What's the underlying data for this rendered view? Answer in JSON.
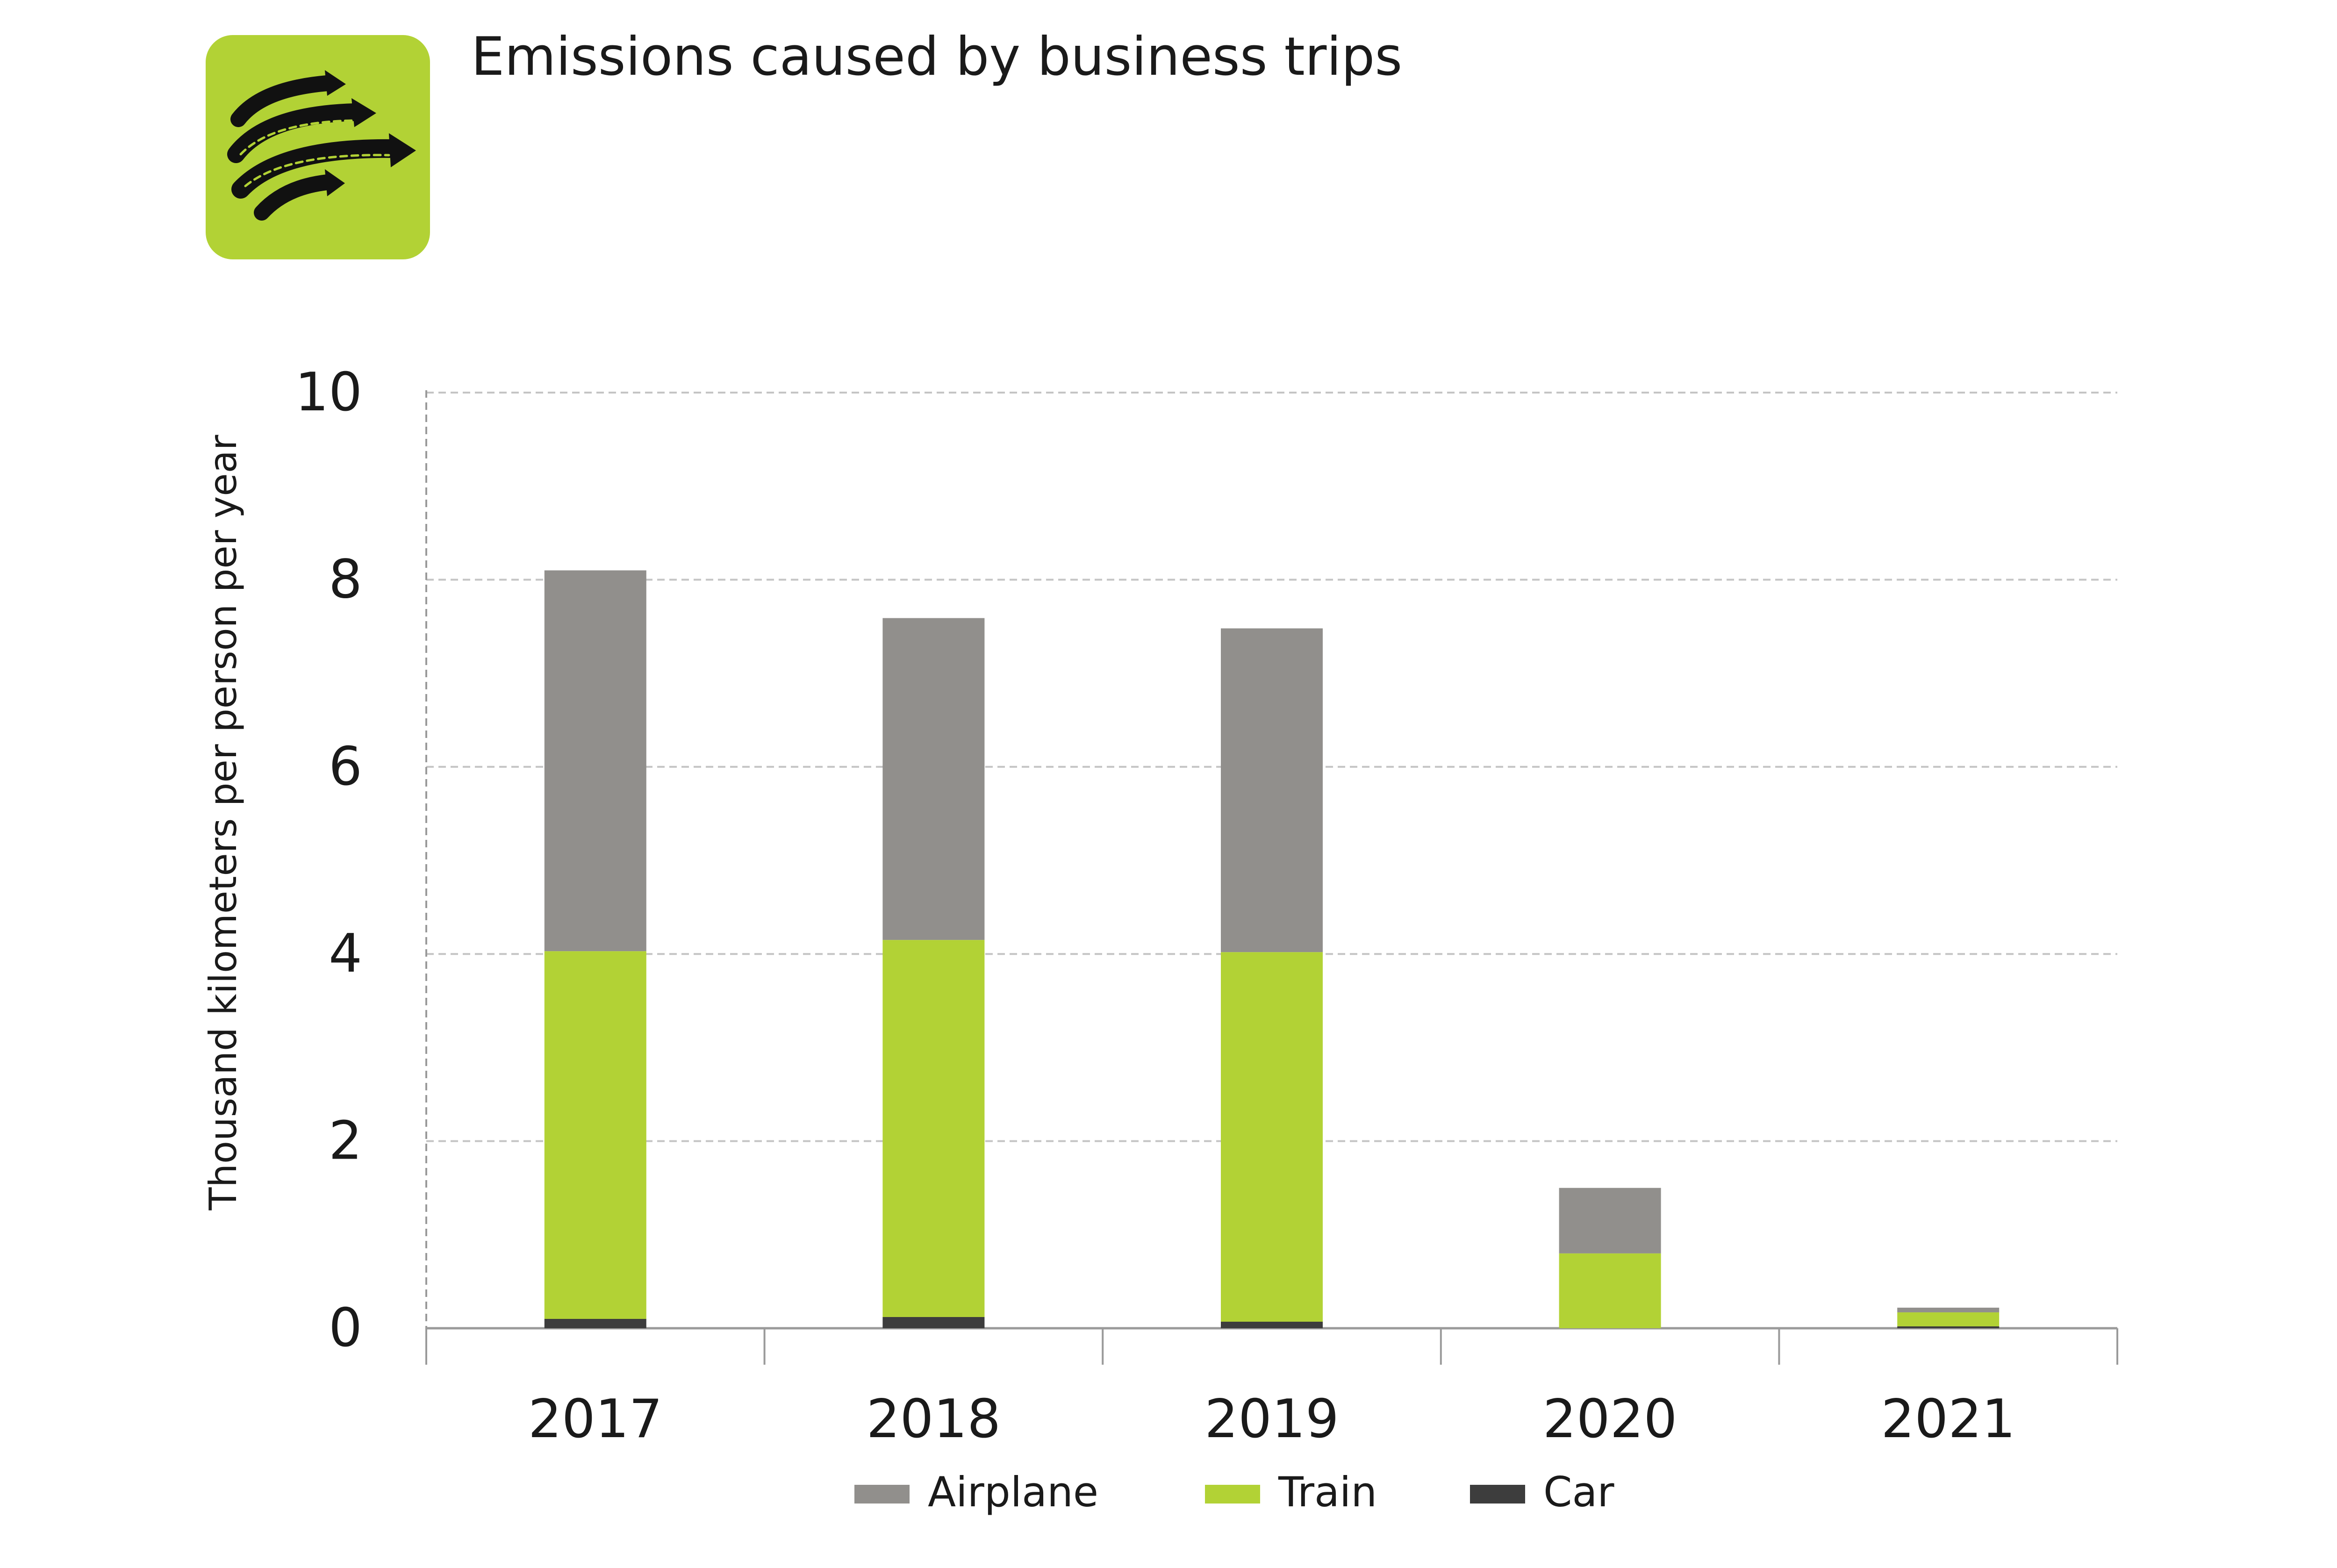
{
  "chart_data": {
    "type": "bar",
    "stacked": true,
    "title": "Emissions caused by business trips",
    "xlabel": "",
    "ylabel": "Thousand kilometers per person per year",
    "categories": [
      "2017",
      "2018",
      "2019",
      "2020",
      "2021"
    ],
    "ylim": [
      0,
      10
    ],
    "yticks": [
      0,
      2,
      4,
      6,
      8,
      10
    ],
    "grid": true,
    "legend_position": "bottom",
    "series": [
      {
        "name": "Car",
        "color": "#3d3d3d",
        "values": [
          0.1,
          0.12,
          0.07,
          0.0,
          0.02
        ]
      },
      {
        "name": "Train",
        "color": "#b2d235",
        "values": [
          3.93,
          4.03,
          3.95,
          0.8,
          0.15
        ]
      },
      {
        "name": "Airplane",
        "color": "#918f8c",
        "values": [
          4.07,
          3.44,
          3.46,
          0.7,
          0.05
        ]
      }
    ],
    "legend_order": [
      "Airplane",
      "Train",
      "Car"
    ]
  },
  "icon": {
    "name": "business-travel-arrows-icon",
    "color": "#b2d235"
  }
}
